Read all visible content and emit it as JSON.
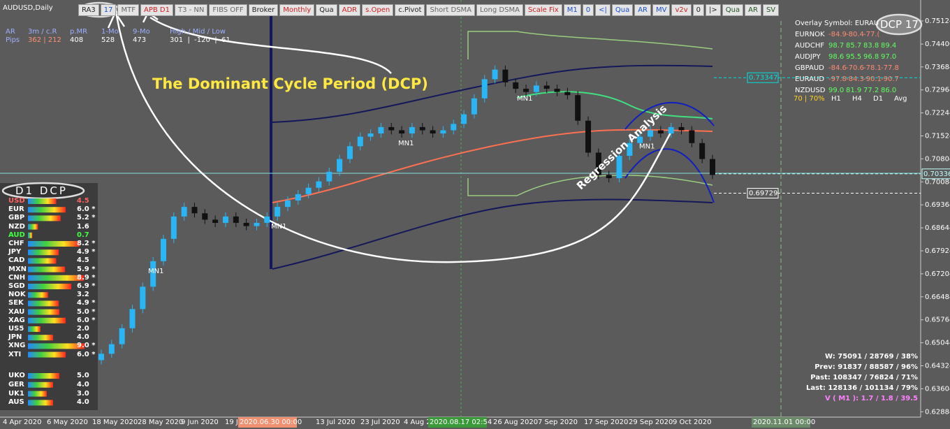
{
  "header": {
    "symbol": "AUDUSD,Daily",
    "buttons": [
      {
        "label": "RA3",
        "color": "#222"
      },
      {
        "label": "17",
        "color": "#1a4fd0"
      },
      {
        "label": "MTF",
        "color": "#666"
      },
      {
        "label": "APB D1",
        "color": "#d02020"
      },
      {
        "label": "T3 - NN",
        "color": "#666"
      },
      {
        "label": "FIBS OFF",
        "color": "#666"
      },
      {
        "label": "Broker",
        "color": "#222"
      },
      {
        "label": "Monthly",
        "color": "#d02020"
      },
      {
        "label": "Qua",
        "color": "#222"
      },
      {
        "label": "ADR",
        "color": "#d02020"
      },
      {
        "label": "s.Open",
        "color": "#d02020"
      },
      {
        "label": "c.Pivot",
        "color": "#222"
      },
      {
        "label": "Short DSMA",
        "color": "#666"
      },
      {
        "label": "Long DSMA",
        "color": "#666"
      },
      {
        "label": "Scale Fix",
        "color": "#d02020"
      },
      {
        "label": "M1",
        "color": "#1a4fd0"
      },
      {
        "label": "0",
        "color": "#1a4fd0"
      },
      {
        "label": "<|",
        "color": "#1a4fd0"
      },
      {
        "label": "Qua",
        "color": "#1a4fd0"
      },
      {
        "label": "AR",
        "color": "#1a4fd0"
      },
      {
        "label": "MV",
        "color": "#1a4fd0"
      },
      {
        "label": "v2v",
        "color": "#d02020"
      },
      {
        "label": "0",
        "color": "#222"
      },
      {
        "label": "|>",
        "color": "#222"
      },
      {
        "label": "Qua",
        "color": "#225522"
      },
      {
        "label": "AR",
        "color": "#225522"
      },
      {
        "label": "SV",
        "color": "#225522"
      }
    ]
  },
  "stats": {
    "labels": [
      "AR",
      "3m / c.R",
      "p.MR",
      "1-Mo",
      "9-Mo",
      "High / Mid / Low"
    ],
    "pips_label": "Pips",
    "values": [
      "362 | 212",
      "408",
      "528",
      "473",
      "301  |  -120  |  61"
    ]
  },
  "annotations": {
    "dcp": "The Dominant Cycle Period (DCP)",
    "regression": "Regression Analysis",
    "d1_dcp": "D1  DCP",
    "dcp17": "DCP 17",
    "mn1": [
      "MN1",
      "MN1",
      "MN1",
      "MN1",
      "MN1"
    ]
  },
  "strength": {
    "rows": [
      {
        "name": "USD",
        "value": 4.5,
        "label": "4.5",
        "color": "#ff6060"
      },
      {
        "name": "EUR",
        "value": 6.0,
        "label": "6.0 *",
        "color": "#fff"
      },
      {
        "name": "GBP",
        "value": 5.2,
        "label": "5.2 *",
        "color": "#fff"
      },
      {
        "name": "NZD",
        "value": 1.6,
        "label": "1.6",
        "color": "#fff"
      },
      {
        "name": "AUD",
        "value": 0.7,
        "label": "0.7",
        "color": "#40ff40"
      },
      {
        "name": "CHF",
        "value": 8.2,
        "label": "8.2 *",
        "color": "#fff"
      },
      {
        "name": "JPY",
        "value": 4.9,
        "label": "4.9 *",
        "color": "#fff"
      },
      {
        "name": "CAD",
        "value": 4.5,
        "label": "4.5",
        "color": "#fff"
      },
      {
        "name": "MXN",
        "value": 5.9,
        "label": "5.9 *",
        "color": "#fff"
      },
      {
        "name": "CNH",
        "value": 8.9,
        "label": "8.9 *",
        "color": "#fff"
      },
      {
        "name": "SGD",
        "value": 6.9,
        "label": "6.9 *",
        "color": "#fff"
      },
      {
        "name": "NOK",
        "value": 3.2,
        "label": "3.2",
        "color": "#fff"
      },
      {
        "name": "SEK",
        "value": 4.9,
        "label": "4.9 *",
        "color": "#fff"
      },
      {
        "name": "XAU",
        "value": 5.0,
        "label": "5.0 *",
        "color": "#fff"
      },
      {
        "name": "XAG",
        "value": 6.0,
        "label": "6.0 *",
        "color": "#fff"
      },
      {
        "name": "US5",
        "value": 2.0,
        "label": "2.0",
        "color": "#fff"
      },
      {
        "name": "JPN",
        "value": 4.0,
        "label": "4.0",
        "color": "#fff"
      },
      {
        "name": "XNG",
        "value": 9.0,
        "label": "9.0 *",
        "color": "#fff"
      },
      {
        "name": "XTI",
        "value": 6.0,
        "label": "6.0 *",
        "color": "#fff"
      }
    ],
    "rows2": [
      {
        "name": "UKO",
        "value": 5.0,
        "label": "5.0"
      },
      {
        "name": "GER",
        "value": 4.0,
        "label": "4.0"
      },
      {
        "name": "UK1",
        "value": 3.0,
        "label": "3.0"
      },
      {
        "name": "AUS",
        "value": 4.0,
        "label": "4.0"
      }
    ]
  },
  "overlay": {
    "title": "Overlay Symbol: EURAU",
    "rows": [
      {
        "symbol": "EURNOK",
        "cells": [
          "-84.9",
          "-80.4",
          "-77.("
        ],
        "color": "#ff8a70"
      },
      {
        "symbol": "AUDCHF",
        "cells": [
          "98.7",
          "85.7",
          "83.8",
          "89.4"
        ],
        "color": "#60ff60"
      },
      {
        "symbol": "AUDJPY",
        "cells": [
          "98.6",
          "95.5",
          "96.8",
          "97.0"
        ],
        "color": "#60ff60"
      },
      {
        "symbol": "GBPAUD",
        "cells": [
          "-84.6",
          "-70.6",
          "-78.1",
          "-77.8"
        ],
        "color": "#ff8a70"
      },
      {
        "symbol": "EURAUD",
        "cells": [
          "-97.8",
          "-84.3",
          "-90.1",
          "-90.7"
        ],
        "color": "#ff8a70"
      },
      {
        "symbol": "NZDUSD",
        "cells": [
          "99.0",
          "81.9",
          "77.2",
          "86.0"
        ],
        "color": "#60ff60"
      }
    ],
    "footer": [
      "70 | 70%",
      "H1",
      "H4",
      "D1",
      "Avg"
    ]
  },
  "summary": [
    "W: 75091 / 28769 / 38%",
    "Prev: 91837 / 88587 / 96%",
    "Past: 108347 / 76824 / 71%",
    "Last: 128136 / 101134 / 79%",
    "V ( M1 ): 1.7 / 1.8 / 39.5"
  ],
  "chart": {
    "yticks": [
      {
        "value": 0.75124,
        "label": "0.75124"
      },
      {
        "value": 0.744,
        "label": "0.74400"
      },
      {
        "value": 0.73684,
        "label": "0.73684"
      },
      {
        "value": 0.72964,
        "label": "0.72964"
      },
      {
        "value": 0.72244,
        "label": "0.72244"
      },
      {
        "value": 0.71524,
        "label": "0.71524"
      },
      {
        "value": 0.70804,
        "label": "0.70804"
      },
      {
        "value": 0.70084,
        "label": "0.70084"
      },
      {
        "value": 0.69364,
        "label": "0.69364"
      },
      {
        "value": 0.68644,
        "label": "0.68644"
      },
      {
        "value": 0.67924,
        "label": "0.67924"
      },
      {
        "value": 0.67204,
        "label": "0.67204"
      },
      {
        "value": 0.66484,
        "label": "0.66484"
      },
      {
        "value": 0.65764,
        "label": "0.65764"
      },
      {
        "value": 0.65044,
        "label": "0.65044"
      },
      {
        "value": 0.64324,
        "label": "0.64324"
      },
      {
        "value": 0.63604,
        "label": "0.63604"
      },
      {
        "value": 0.62884,
        "label": "0.62884"
      }
    ],
    "levels": [
      {
        "value": 0.73347,
        "label": "0.73347",
        "color": "#00e0e0"
      },
      {
        "value": 0.70336,
        "label": "0.70336",
        "color": "#c0ffff"
      },
      {
        "value": 0.69729,
        "label": "0.69729",
        "color": "#ffffff"
      }
    ],
    "dates": [
      "4 Apr 2020",
      "6 May 2020",
      "18 May 2020",
      "28 May 2020",
      "9 Jun 2020",
      "19 J",
      "2020.06.30 00:00",
      "13 Jul 2020",
      "23 Jul 2020",
      "4 Aug 2",
      "2020.08.17 02:54",
      "26 Aug 2020",
      "7 Sep 2020",
      "17 Sep 2020",
      "29 Sep 2020",
      "9 Oct 2020",
      "2020.11.01 00:00"
    ],
    "closes": [
      0.647,
      0.65,
      0.655,
      0.661,
      0.668,
      0.676,
      0.683,
      0.69,
      0.693,
      0.691,
      0.689,
      0.688,
      0.69,
      0.688,
      0.687,
      0.688,
      0.69,
      0.693,
      0.695,
      0.697,
      0.699,
      0.701,
      0.704,
      0.708,
      0.712,
      0.715,
      0.716,
      0.718,
      0.717,
      0.716,
      0.718,
      0.717,
      0.716,
      0.717,
      0.719,
      0.722,
      0.727,
      0.733,
      0.736,
      0.732,
      0.73,
      0.729,
      0.731,
      0.73,
      0.729,
      0.728,
      0.72,
      0.71,
      0.703,
      0.702,
      0.709,
      0.713,
      0.715,
      0.717,
      0.716,
      0.718,
      0.717,
      0.713,
      0.708,
      0.703
    ]
  }
}
